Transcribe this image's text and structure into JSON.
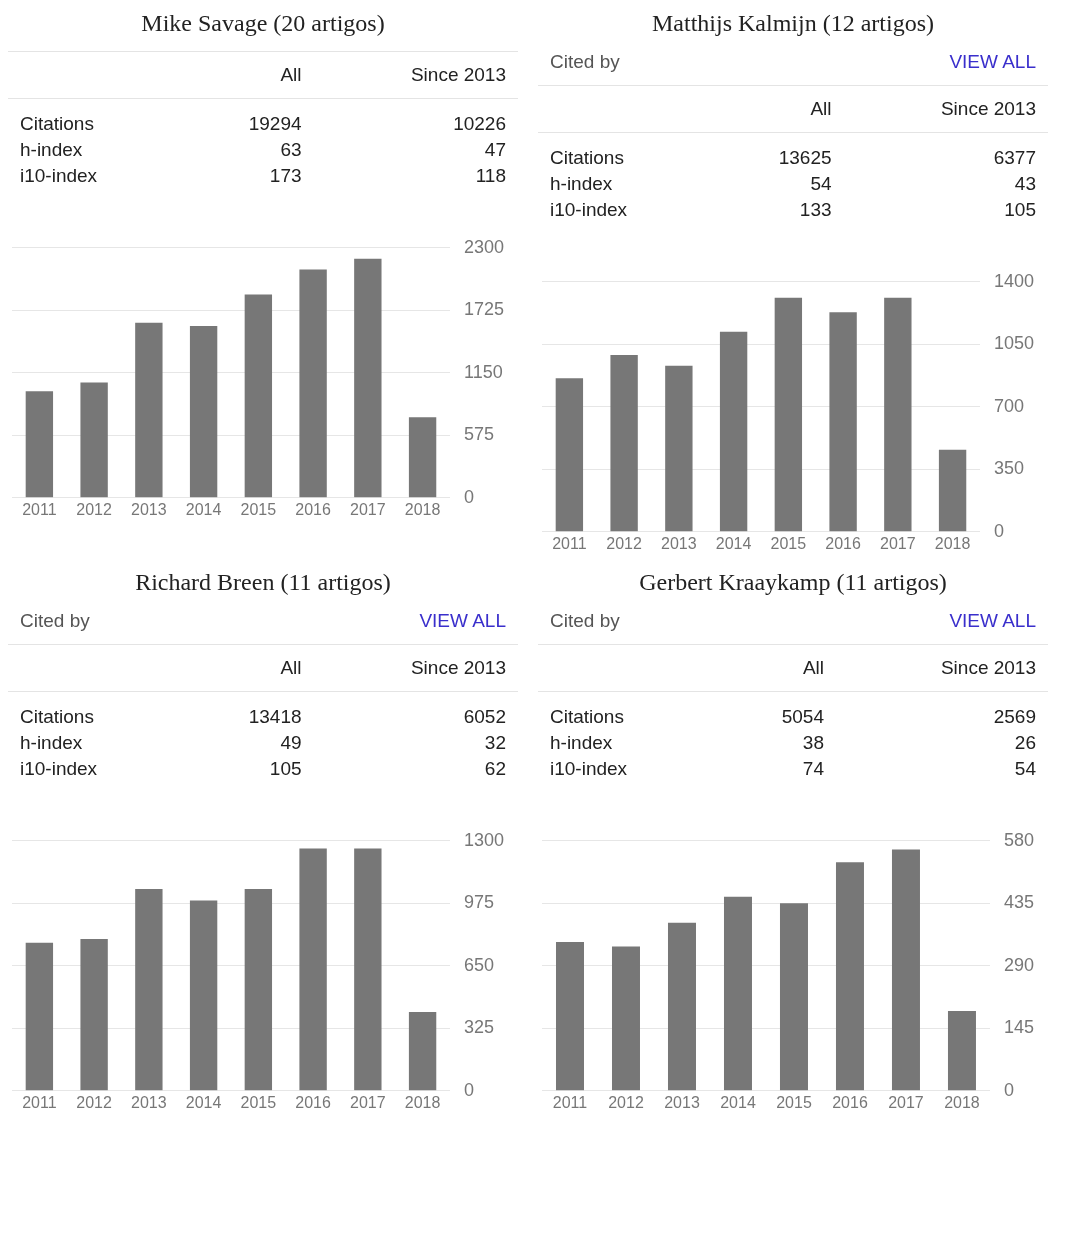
{
  "chart_data": [
    {
      "type": "other",
      "title": "Mike Savage (20 artigos)",
      "annotations": [
        "All",
        "Since 2013",
        "Citations",
        "19294",
        "10226",
        "h-index",
        "63",
        "47",
        "i10-index",
        "173",
        "118"
      ]
    },
    {
      "type": "bar",
      "categories": [
        "2011",
        "2012",
        "2013",
        "2014",
        "2015",
        "2016",
        "2017",
        "2018"
      ],
      "values": [
        980,
        1060,
        1610,
        1580,
        1870,
        2100,
        2200,
        740
      ],
      "color": "#777777",
      "ylim": [
        0,
        2300
      ],
      "yticks": [
        0,
        575,
        1150,
        1725,
        2300
      ],
      "grid": "y"
    },
    {
      "type": "other",
      "title": "Matthijs Kalmijn (12 artigos)",
      "subtitle": "Cited by",
      "annotations": [
        "VIEW ALL",
        "All",
        "Since 2013",
        "Citations",
        "13625",
        "6377",
        "h-index",
        "54",
        "43",
        "i10-index",
        "133",
        "105"
      ]
    },
    {
      "type": "bar",
      "categories": [
        "2011",
        "2012",
        "2013",
        "2014",
        "2015",
        "2016",
        "2017",
        "2018"
      ],
      "values": [
        860,
        990,
        930,
        1120,
        1310,
        1230,
        1310,
        460
      ],
      "color": "#777777",
      "ylim": [
        0,
        1400
      ],
      "yticks": [
        0,
        350,
        700,
        1050,
        1400
      ],
      "grid": "y"
    },
    {
      "type": "other",
      "title": "Richard Breen (11 artigos)",
      "subtitle": "Cited by",
      "annotations": [
        "VIEW ALL",
        "All",
        "Since 2013",
        "Citations",
        "13418",
        "6052",
        "h-index",
        "49",
        "32",
        "i10-index",
        "105",
        "62"
      ]
    },
    {
      "type": "bar",
      "categories": [
        "2011",
        "2012",
        "2013",
        "2014",
        "2015",
        "2016",
        "2017",
        "2018"
      ],
      "values": [
        770,
        790,
        1050,
        990,
        1050,
        1260,
        1260,
        410
      ],
      "color": "#777777",
      "ylim": [
        0,
        1300
      ],
      "yticks": [
        0,
        325,
        650,
        975,
        1300
      ],
      "grid": "y"
    },
    {
      "type": "other",
      "title": "Gerbert Kraaykamp (11 artigos)",
      "subtitle": "Cited by",
      "annotations": [
        "VIEW ALL",
        "All",
        "Since 2013",
        "Citations",
        "5054",
        "2569",
        "h-index",
        "38",
        "26",
        "i10-index",
        "74",
        "54"
      ]
    },
    {
      "type": "bar",
      "categories": [
        "2011",
        "2012",
        "2013",
        "2014",
        "2015",
        "2016",
        "2017",
        "2018"
      ],
      "values": [
        345,
        335,
        390,
        450,
        435,
        530,
        560,
        185
      ],
      "color": "#777777",
      "ylim": [
        0,
        580
      ],
      "yticks": [
        0,
        145,
        290,
        435,
        580
      ],
      "grid": "y"
    }
  ]
}
